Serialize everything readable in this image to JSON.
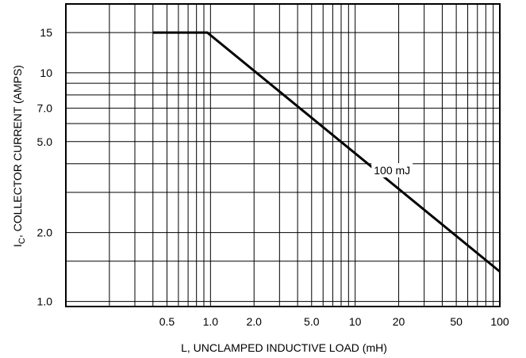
{
  "chart_data": {
    "type": "line",
    "xlabel": "L, UNCLAMPED INDUCTIVE LOAD (mH)",
    "ylabel_main": "I",
    "ylabel_sub": "C",
    "ylabel_rest": ", COLLECTOR CURRENT (AMPS)",
    "x_scale": "log",
    "y_scale": "log",
    "xlim": [
      0.1,
      100
    ],
    "ylim": [
      0.95,
      20
    ],
    "x_tick_labels": [
      {
        "value": 0.5,
        "label": "0.5"
      },
      {
        "value": 1.0,
        "label": "1.0"
      },
      {
        "value": 2.0,
        "label": "2.0"
      },
      {
        "value": 5.0,
        "label": "5.0"
      },
      {
        "value": 10,
        "label": "10"
      },
      {
        "value": 20,
        "label": "20"
      },
      {
        "value": 50,
        "label": "50"
      },
      {
        "value": 100,
        "label": "100"
      }
    ],
    "y_tick_labels": [
      {
        "value": 1.0,
        "label": "1.0"
      },
      {
        "value": 2.0,
        "label": "2.0"
      },
      {
        "value": 5.0,
        "label": "5.0"
      },
      {
        "value": 7.0,
        "label": "7.0"
      },
      {
        "value": 10,
        "label": "10"
      },
      {
        "value": 15,
        "label": "15"
      }
    ],
    "grid": true,
    "x_grid_values": [
      0.2,
      0.3,
      0.4,
      0.5,
      0.6,
      0.7,
      0.8,
      0.9,
      1,
      2,
      3,
      4,
      5,
      6,
      7,
      8,
      9,
      10,
      20,
      30,
      40,
      50,
      60,
      70,
      80,
      90,
      100
    ],
    "y_grid_values": [
      1,
      1.5,
      2,
      3,
      4,
      5,
      6,
      7,
      8,
      9,
      10,
      15
    ],
    "series": [
      {
        "x": [
          0.4,
          0.95,
          100
        ],
        "y": [
          15,
          15,
          1.35
        ]
      }
    ],
    "annotations": [
      {
        "text": "100 mJ",
        "x": 18,
        "y": 3.6
      }
    ]
  }
}
